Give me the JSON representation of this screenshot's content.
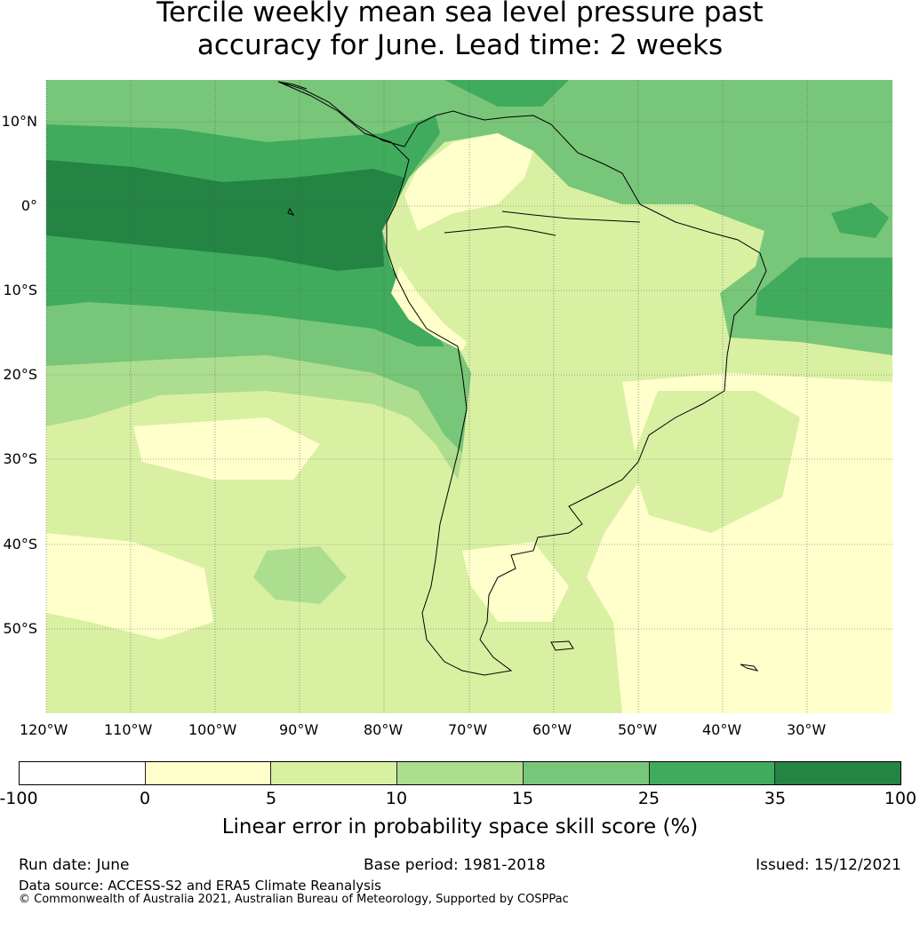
{
  "title_line1": "Tercile weekly mean sea level pressure past",
  "title_line2": "accuracy for June. Lead time: 2 weeks",
  "lat_labels": [
    "10°N",
    "0°",
    "10°S",
    "20°S",
    "30°S",
    "40°S",
    "50°S"
  ],
  "lon_labels": [
    "120°W",
    "110°W",
    "100°W",
    "90°W",
    "80°W",
    "70°W",
    "60°W",
    "50°W",
    "40°W",
    "30°W"
  ],
  "colorbar": {
    "ticks": [
      "-100",
      "0",
      "5",
      "10",
      "15",
      "25",
      "35",
      "100"
    ],
    "colors": [
      "#ffffff",
      "#ffffcc",
      "#d9f0a3",
      "#addd8e",
      "#78c679",
      "#41ab5d",
      "#238443"
    ],
    "label": "Linear error in probability space skill score (%)"
  },
  "footer": {
    "run_date": "Run date: June",
    "base_period": "Base period: 1981-2018",
    "issued": "Issued: 15/12/2021",
    "data_source": "Data source: ACCESS-S2 and ERA5 Climate Reanalysis",
    "copyright": "© Commonwealth of Australia 2021, Australian Bureau of Meteorology, Supported by COSPPac"
  }
}
